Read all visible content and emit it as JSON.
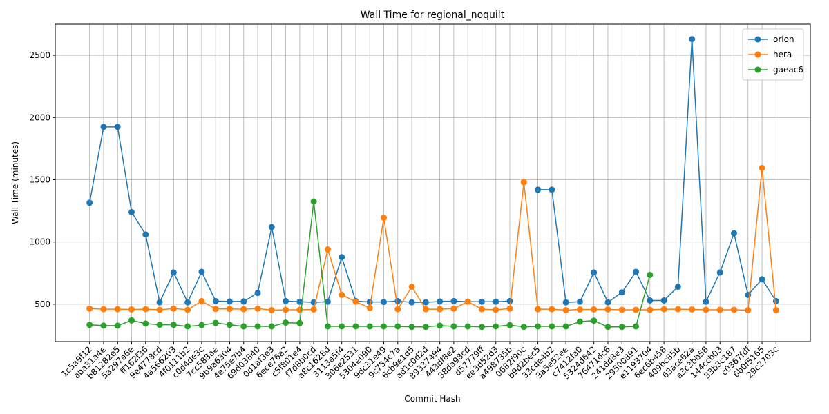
{
  "chart_data": {
    "type": "line",
    "title": "Wall Time for regional_noquilt",
    "x_label": "Commit Hash",
    "y_label": "Wall Time (minutes)",
    "categories": [
      "1c5a9f12",
      "aba31a4e",
      "b81282e5",
      "5a297a6e",
      "ff162f36",
      "9e4778cd",
      "4a566203",
      "4f0111b2",
      "c0d4de3c",
      "7cc588ae",
      "9b9a6304",
      "4e75e7b4",
      "69d03840",
      "0d1af3e3",
      "6ece76a2",
      "c5f801e4",
      "f7d8b0cd",
      "a8c1628d",
      "3113a5f4",
      "306e2531",
      "5304e090",
      "9dc31e49",
      "9c754c7a",
      "6cb9e1d5",
      "ad1c0d2d",
      "89337494",
      "443df8e2",
      "38da98cd",
      "d57779ff",
      "ee3d52d3",
      "a498735b",
      "0682f90c",
      "b9d2bec5",
      "33cde4b2",
      "3a5e52ee",
      "c7412fa0",
      "5324d642",
      "76471dc6",
      "241dd8e3",
      "29500891",
      "e1193704",
      "6ec6b458",
      "409bc85b",
      "63ace62a",
      "a3c3bb58",
      "144ccb03",
      "33b3c187",
      "c0367fdf",
      "6b0f5165",
      "29c2703c"
    ],
    "series": [
      {
        "name": "orion",
        "color": "#1f77b4",
        "values": [
          1315,
          1925,
          1925,
          1240,
          1060,
          515,
          755,
          515,
          760,
          525,
          522,
          522,
          590,
          1120,
          525,
          520,
          515,
          520,
          878,
          525,
          518,
          518,
          525,
          515,
          515,
          522,
          525,
          520,
          520,
          520,
          525,
          null,
          1420,
          1420,
          515,
          520,
          755,
          515,
          595,
          760,
          530,
          530,
          640,
          2630,
          520,
          755,
          1070,
          575,
          700,
          525
        ]
      },
      {
        "name": "hera",
        "color": "#ff7f0e",
        "values": [
          465,
          460,
          460,
          458,
          460,
          455,
          465,
          455,
          525,
          462,
          462,
          460,
          465,
          452,
          455,
          455,
          458,
          940,
          575,
          520,
          470,
          1195,
          460,
          640,
          460,
          460,
          465,
          520,
          460,
          455,
          465,
          1480,
          460,
          460,
          452,
          458,
          458,
          458,
          455,
          455,
          455,
          460,
          460,
          458,
          455,
          455,
          455,
          452,
          1595,
          452
        ]
      },
      {
        "name": "gaeac6",
        "color": "#2ca02c",
        "values": [
          335,
          328,
          328,
          370,
          345,
          335,
          335,
          322,
          332,
          350,
          335,
          322,
          322,
          322,
          352,
          348,
          1325,
          322,
          322,
          322,
          322,
          322,
          322,
          318,
          318,
          328,
          322,
          322,
          318,
          322,
          332,
          318,
          322,
          322,
          322,
          360,
          368,
          318,
          318,
          322,
          735,
          null,
          null,
          null,
          null,
          null,
          null,
          null,
          null,
          null
        ]
      }
    ],
    "ylim": [
      200,
      2750
    ],
    "yticks": [
      500,
      1000,
      1500,
      2000,
      2500
    ],
    "grid": true,
    "legend": "upper right"
  }
}
